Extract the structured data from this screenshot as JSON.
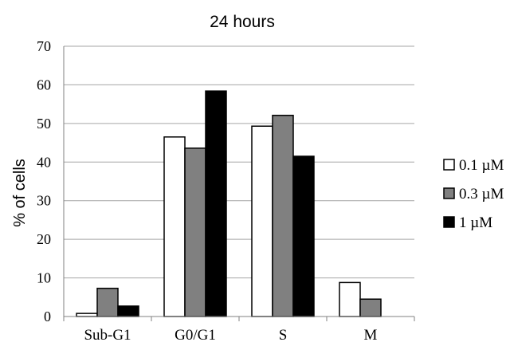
{
  "chart_data": {
    "type": "bar",
    "title": "24 hours",
    "xlabel": "",
    "ylabel": "% of cells",
    "ylim": [
      0,
      70
    ],
    "yticks": [
      0,
      10,
      20,
      30,
      40,
      50,
      60,
      70
    ],
    "grid": true,
    "legend_position": "right",
    "categories": [
      "Sub-G1",
      "G0/G1",
      "S",
      "M"
    ],
    "series": [
      {
        "name": "0.1 µM",
        "color": "#ffffff",
        "values": [
          0.8,
          46.5,
          49.3,
          8.8
        ]
      },
      {
        "name": "0.3 µM",
        "color": "#808080",
        "values": [
          7.3,
          43.6,
          52.1,
          4.5
        ]
      },
      {
        "name": "1 µM",
        "color": "#000000",
        "values": [
          2.7,
          58.4,
          41.5,
          0
        ]
      }
    ]
  }
}
